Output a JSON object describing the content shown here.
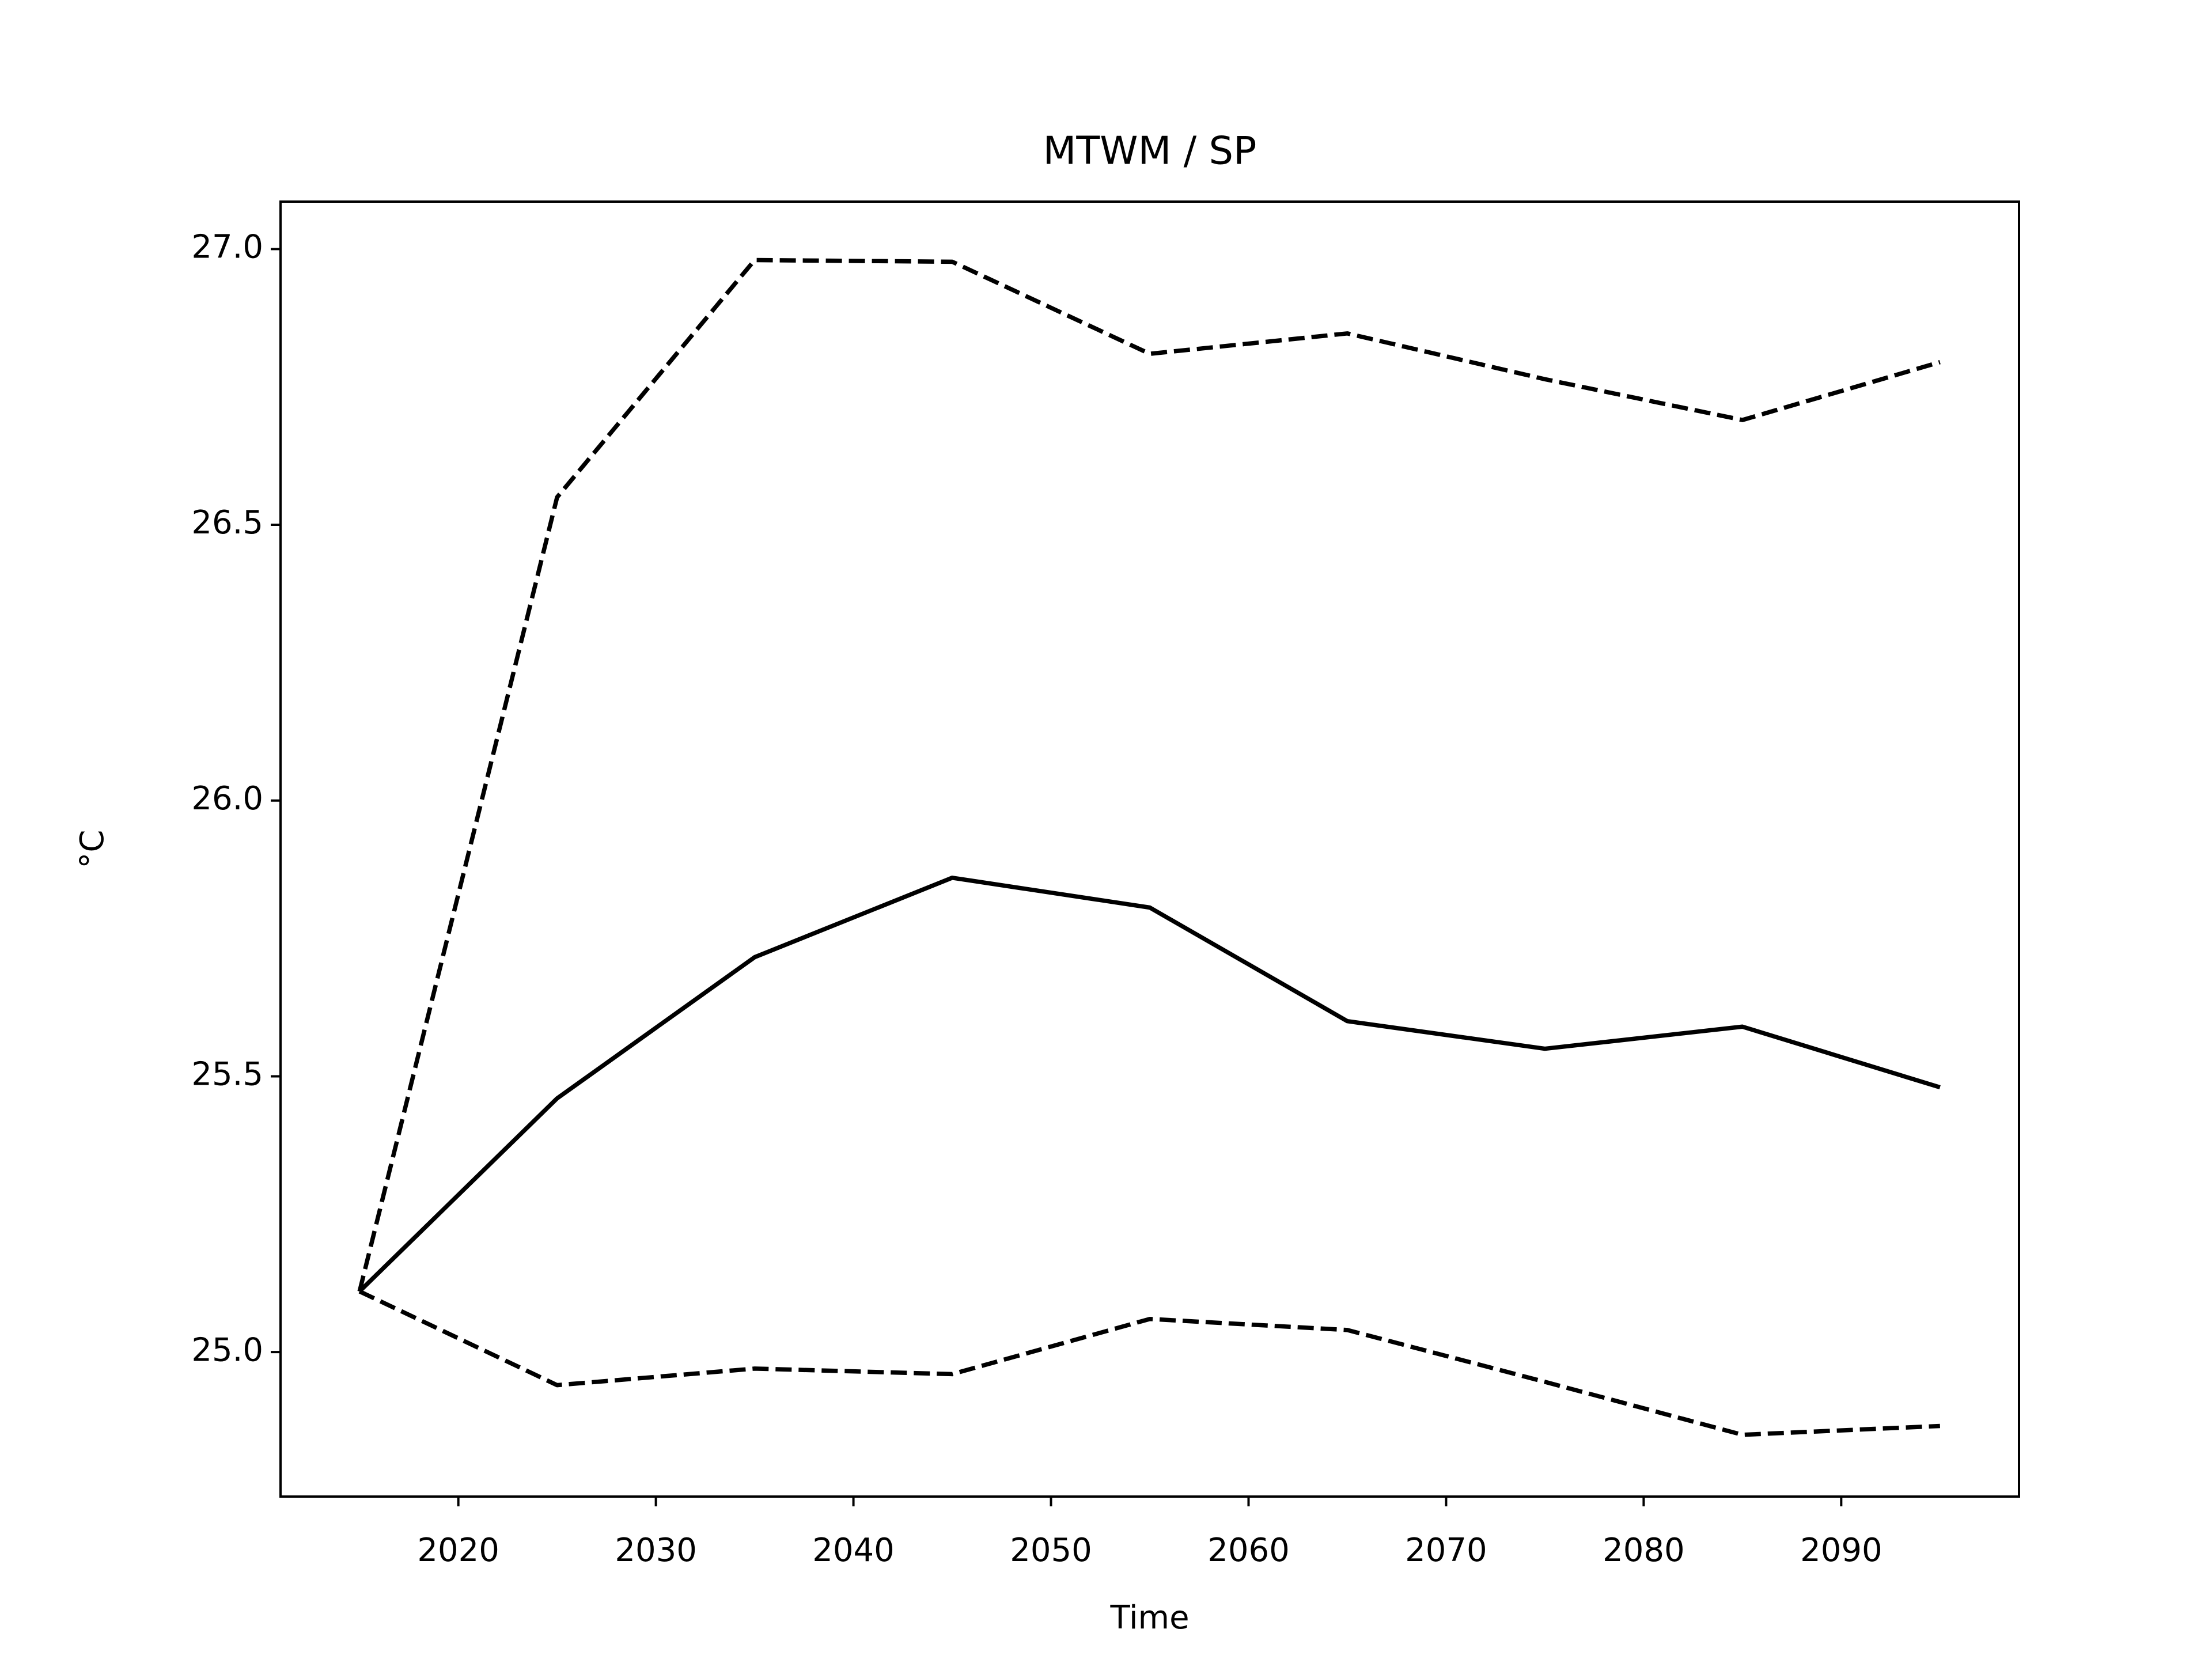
{
  "chart_data": {
    "type": "line",
    "title": "MTWM / SP",
    "xlabel": "Time",
    "ylabel": "°C",
    "x": [
      2015,
      2025,
      2035,
      2045,
      2055,
      2065,
      2075,
      2085,
      2095
    ],
    "series": [
      {
        "color": "#000000",
        "linestyle": "solid",
        "values": [
          25.11,
          25.46,
          25.716,
          25.86,
          25.806,
          25.6,
          25.55,
          25.59,
          25.48
        ]
      },
      {
        "color": "#000000",
        "linestyle": "dashed",
        "values": [
          25.11,
          26.55,
          26.98,
          26.977,
          26.81,
          26.847,
          26.764,
          26.69,
          26.795
        ]
      },
      {
        "color": "#000000",
        "linestyle": "dashed",
        "values": [
          25.11,
          24.94,
          24.97,
          24.96,
          25.06,
          25.04,
          24.946,
          24.85,
          24.866
        ]
      }
    ],
    "xlim": [
      2011,
      2099
    ],
    "xticks": [
      2020,
      2030,
      2040,
      2050,
      2060,
      2070,
      2080,
      2090
    ],
    "ylim": [
      24.738,
      27.086
    ],
    "yticks": [
      {
        "value": 25,
        "label": "25.0"
      },
      25.5,
      {
        "value": 26,
        "label": "26.0"
      },
      26.5,
      {
        "value": 27,
        "label": "27.0"
      }
    ],
    "grid": false
  }
}
